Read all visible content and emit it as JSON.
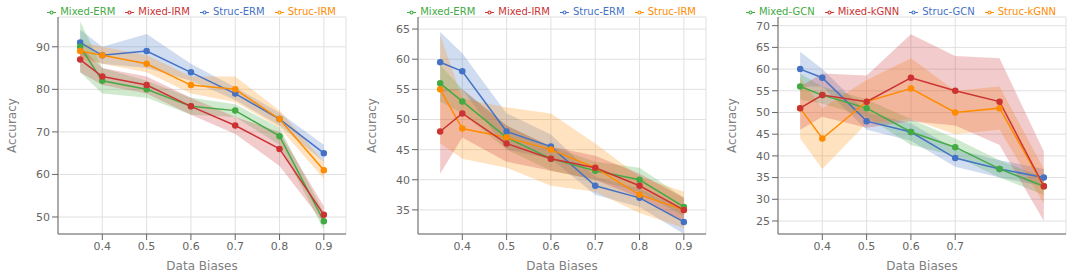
{
  "chart_data": [
    {
      "type": "line",
      "xlabel": "Data Biases",
      "ylabel": "Accuracy",
      "x": [
        0.35,
        0.4,
        0.5,
        0.6,
        0.7,
        0.8,
        0.9
      ],
      "series": [
        {
          "name": "Struc-ERM",
          "color": "#4472C4",
          "marker": "circle",
          "values": [
            91,
            88,
            89,
            84,
            79,
            73,
            65
          ],
          "std": [
            3,
            2,
            4,
            2,
            1.5,
            1.5,
            2
          ]
        },
        {
          "name": "Mixed-ERM",
          "color": "#44AA44",
          "marker": "circle",
          "values": [
            90,
            82,
            80,
            76,
            75,
            69,
            49
          ],
          "std": [
            6,
            3,
            2,
            2,
            1.5,
            2,
            2
          ]
        },
        {
          "name": "Struc-IRM",
          "color": "#FF8C00",
          "marker": "circle",
          "values": [
            89,
            88,
            86,
            81,
            80,
            73,
            61
          ],
          "std": [
            2,
            2,
            2,
            2,
            3,
            2,
            2
          ]
        },
        {
          "name": "Mixed-IRM",
          "color": "#CC3333",
          "marker": "circle",
          "values": [
            87,
            83,
            81,
            76,
            71.5,
            66,
            50.5
          ],
          "std": [
            3,
            2,
            2,
            2,
            2,
            4,
            2
          ]
        }
      ],
      "xlim": [
        0.3,
        0.95
      ],
      "xticks": [
        0.4,
        0.5,
        0.6,
        0.7,
        0.8,
        0.9
      ],
      "ylim": [
        46,
        97
      ],
      "yticks": [
        50,
        60,
        70,
        80,
        90
      ],
      "grid": true,
      "legend": "upper right"
    },
    {
      "type": "line",
      "xlabel": "Data Biases",
      "ylabel": "Accuracy",
      "x": [
        0.35,
        0.4,
        0.5,
        0.6,
        0.7,
        0.8,
        0.9
      ],
      "series": [
        {
          "name": "Struc-ERM",
          "color": "#4472C4",
          "marker": "circle",
          "values": [
            59.5,
            58,
            48,
            45.5,
            39,
            37,
            33
          ],
          "std": [
            5,
            3,
            3,
            2,
            1.5,
            1.5,
            2
          ]
        },
        {
          "name": "Mixed-ERM",
          "color": "#44AA44",
          "marker": "circle",
          "values": [
            56,
            53,
            47,
            43.5,
            41.5,
            40,
            35.5
          ],
          "std": [
            3,
            2,
            2,
            2,
            1.5,
            2,
            1.5
          ]
        },
        {
          "name": "Struc-IRM",
          "color": "#FF8C00",
          "marker": "circle",
          "values": [
            55,
            48.5,
            47,
            45,
            42,
            37.5,
            35
          ],
          "std": [
            9,
            5,
            5,
            6,
            4,
            3,
            3
          ]
        },
        {
          "name": "Mixed-IRM",
          "color": "#CC3333",
          "marker": "circle",
          "values": [
            48,
            51,
            46,
            43.5,
            42,
            39,
            35
          ],
          "std": [
            7,
            4,
            3,
            2,
            2,
            2,
            2
          ]
        }
      ],
      "xlim": [
        0.3,
        0.95
      ],
      "xticks": [
        0.4,
        0.5,
        0.6,
        0.7,
        0.8,
        0.9
      ],
      "ylim": [
        31,
        67
      ],
      "yticks": [
        35,
        40,
        45,
        50,
        55,
        60,
        65
      ],
      "grid": true,
      "legend": "upper right"
    },
    {
      "type": "line",
      "xlabel": "Data Biases",
      "ylabel": "Accuracy",
      "x": [
        0.35,
        0.4,
        0.5,
        0.6,
        0.7,
        0.8,
        0.9
      ],
      "series": [
        {
          "name": "Struc-GCN",
          "color": "#4472C4",
          "marker": "circle",
          "values": [
            60,
            58,
            48,
            45.5,
            39.5,
            37,
            35
          ],
          "std": [
            4,
            2,
            2,
            2,
            2,
            2,
            2
          ]
        },
        {
          "name": "Mixed-GCN",
          "color": "#44AA44",
          "marker": "circle",
          "values": [
            56,
            54,
            51,
            45.5,
            42,
            37,
            33
          ],
          "std": [
            3,
            2,
            2,
            3,
            2,
            2,
            2
          ]
        },
        {
          "name": "Struc-kGNN",
          "color": "#FF8C00",
          "marker": "circle",
          "values": [
            51,
            44,
            52.5,
            55.5,
            50,
            51,
            33
          ],
          "std": [
            7,
            7,
            5,
            7,
            5,
            5,
            4
          ]
        },
        {
          "name": "Mixed-kGNN",
          "color": "#CC3333",
          "marker": "circle",
          "values": [
            51,
            54,
            52.5,
            58,
            55,
            52.5,
            33
          ],
          "std": [
            5,
            5,
            6,
            10,
            8,
            10,
            8
          ]
        }
      ],
      "xlim": [
        0.3,
        0.95
      ],
      "xticks": [
        0.4,
        0.5,
        0.6,
        0.7
      ],
      "ylim": [
        22,
        72
      ],
      "yticks": [
        25,
        30,
        35,
        40,
        45,
        50,
        55,
        60,
        65,
        70
      ],
      "grid": true,
      "legend": "upper right"
    }
  ]
}
